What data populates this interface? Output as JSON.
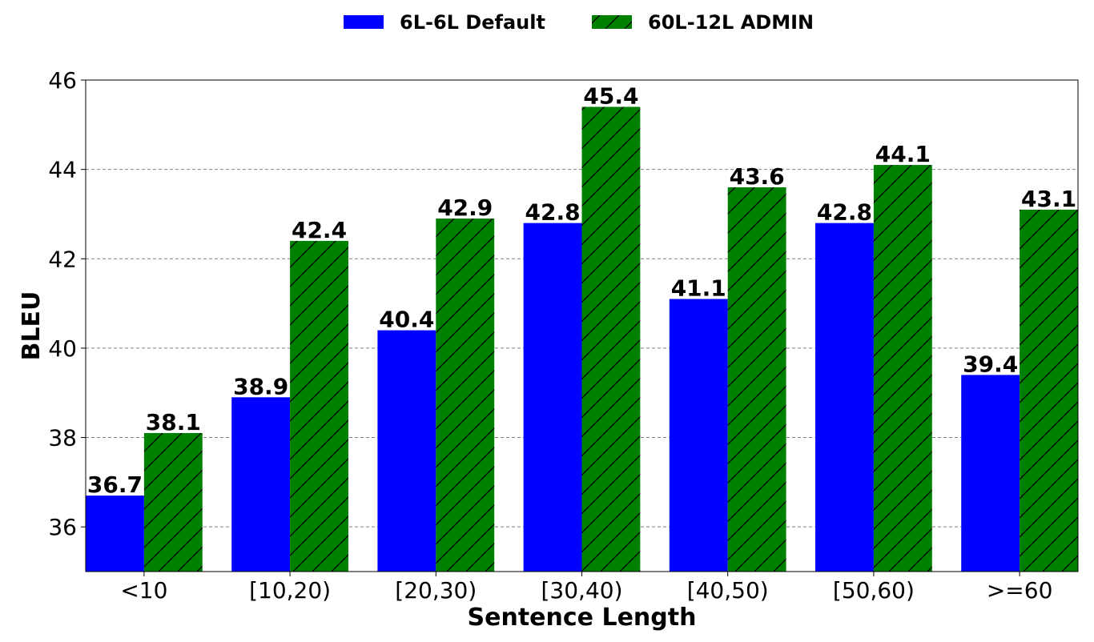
{
  "chart_data": {
    "type": "bar",
    "title": "",
    "xlabel": "Sentence Length",
    "ylabel": "BLEU",
    "categories": [
      "<10",
      "[10,20)",
      "[20,30)",
      "[30,40)",
      "[40,50)",
      "[50,60)",
      ">=60"
    ],
    "series": [
      {
        "name": "6L-6L Default",
        "color": "#0000ff",
        "hatch": false,
        "values": [
          36.7,
          38.9,
          40.4,
          42.8,
          41.1,
          42.8,
          39.4
        ]
      },
      {
        "name": "60L-12L ADMIN",
        "color": "#008000",
        "hatch": true,
        "values": [
          38.1,
          42.4,
          42.9,
          45.4,
          43.6,
          44.1,
          43.1
        ]
      }
    ],
    "ylim": [
      35,
      46
    ],
    "yticks": [
      36,
      38,
      40,
      42,
      44,
      46
    ],
    "grid": true,
    "legend_position": "top-center"
  }
}
